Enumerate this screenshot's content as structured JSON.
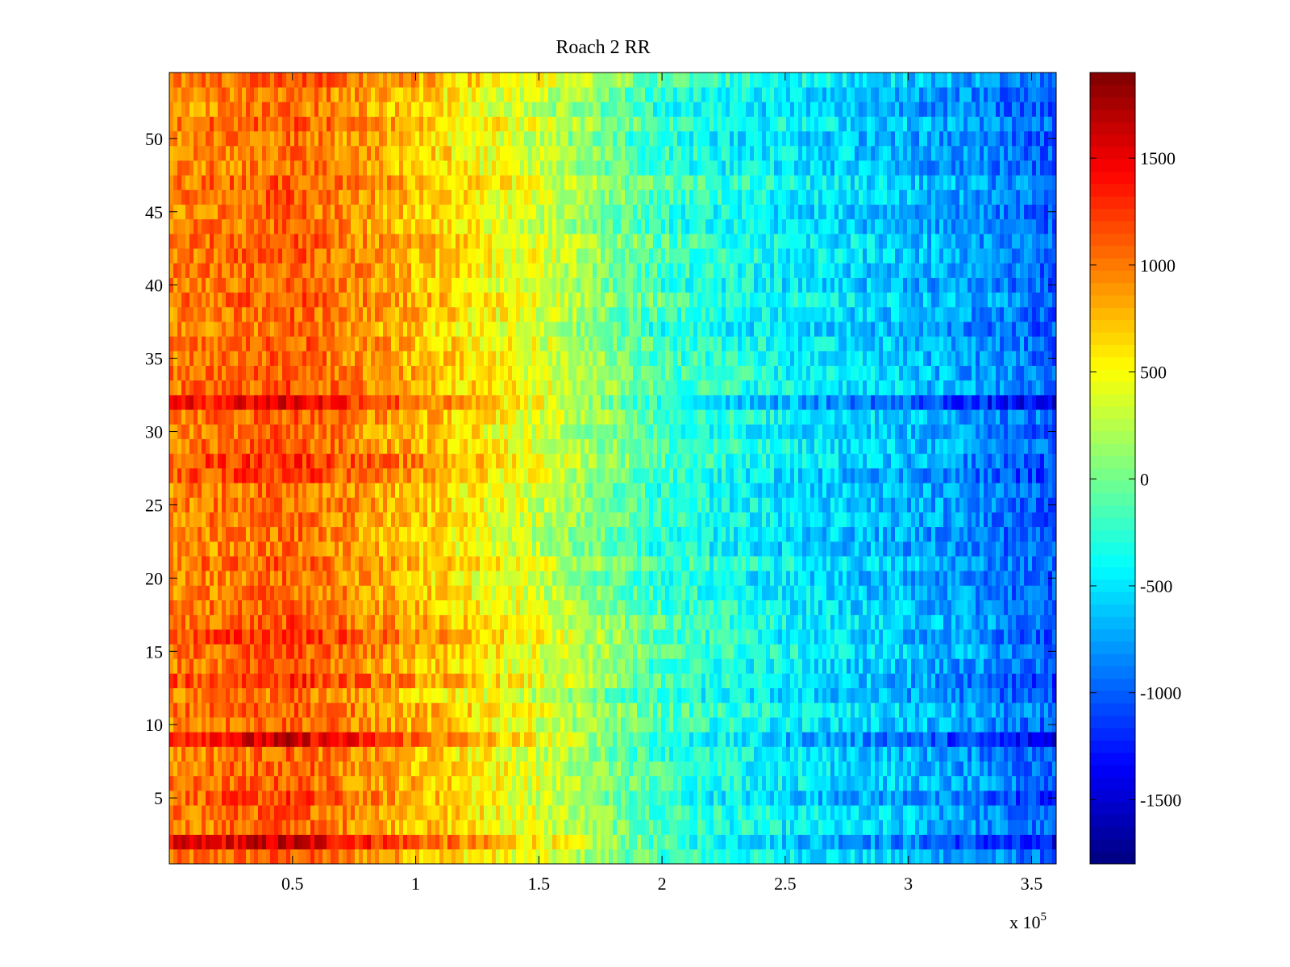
{
  "chart_data": {
    "type": "heatmap",
    "title": "Roach 2 RR",
    "xlabel": "",
    "ylabel": "",
    "xlim": [
      0,
      360000
    ],
    "ylim": [
      0.5,
      54.5
    ],
    "x_ticks": [
      50000,
      100000,
      150000,
      200000,
      250000,
      300000,
      350000
    ],
    "x_tick_labels": [
      "0.5",
      "1",
      "1.5",
      "2",
      "2.5",
      "3",
      "3.5"
    ],
    "x_exponent_label": "x 10",
    "x_exponent_power": "5",
    "y_ticks": [
      5,
      10,
      15,
      20,
      25,
      30,
      35,
      40,
      45,
      50
    ],
    "y_tick_labels": [
      "5",
      "10",
      "15",
      "20",
      "25",
      "30",
      "35",
      "40",
      "45",
      "50"
    ],
    "rows": 54,
    "colormap": "jet",
    "colorbar": {
      "clim": [
        -1800,
        1900
      ],
      "ticks": [
        1500,
        1000,
        500,
        0,
        -500,
        -1000,
        -1500
      ],
      "tick_labels": [
        "1500",
        "1000",
        "500",
        "0",
        "-500",
        "-1000",
        "-1500"
      ]
    },
    "trend_profile": {
      "x": [
        0,
        50000,
        100000,
        150000,
        200000,
        250000,
        300000,
        360000
      ],
      "typical_value": [
        950,
        1100,
        750,
        350,
        -200,
        -450,
        -650,
        -1000
      ]
    },
    "notable_rows": [
      {
        "row": 32,
        "description": "strong extremes",
        "value_at_x50000": 1700,
        "value_at_x240000": -1500
      },
      {
        "row": 9,
        "description": "strong extremes",
        "value_at_x50000": 1500,
        "value_at_x330000": -1350
      },
      {
        "row": 2,
        "description": "high on left",
        "value_at_x50000": 1400
      }
    ]
  }
}
